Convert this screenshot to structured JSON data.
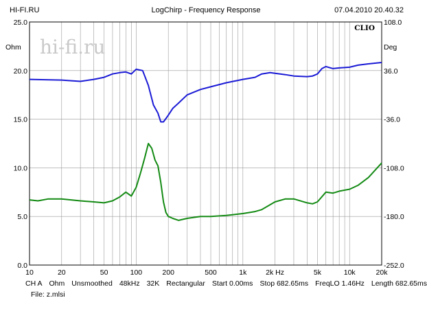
{
  "header": {
    "left": "HI-FI.RU",
    "center": "LogChirp - Frequency Response",
    "right": "07.04.2010 20.40.32"
  },
  "watermark": "hi-fi.ru",
  "brand": "CLIO",
  "footer": {
    "items": [
      "CH A",
      "Ohm",
      "Unsmoothed",
      "48kHz",
      "32K",
      "Rectangular",
      "Start 0.00ms",
      "Stop 682.65ms",
      "FreqLO 1.46Hz",
      "Length 682.65ms"
    ],
    "file": "File: z.mlsi"
  },
  "colors": {
    "impedance": "#1a1ad6",
    "phase": "#138a13",
    "grid": "#9a9a9a",
    "watermark": "#c9c9c9",
    "background": "#ffffff"
  },
  "chart_data": {
    "type": "line",
    "xscale": "log",
    "xlim": [
      10,
      20000
    ],
    "ylim_left": [
      0,
      25
    ],
    "ylim_right": [
      -252,
      108
    ],
    "left_unit": "Ohm",
    "right_unit": "Deg",
    "x_ticks": [
      {
        "v": 10,
        "label": "10"
      },
      {
        "v": 20,
        "label": "20"
      },
      {
        "v": 50,
        "label": "50"
      },
      {
        "v": 100,
        "label": "100"
      },
      {
        "v": 200,
        "label": "200"
      },
      {
        "v": 500,
        "label": "500"
      },
      {
        "v": 1000,
        "label": "1k"
      },
      {
        "v": 2000,
        "label": "2k Hz"
      },
      {
        "v": 5000,
        "label": "5k"
      },
      {
        "v": 10000,
        "label": "10k"
      },
      {
        "v": 20000,
        "label": "20k"
      }
    ],
    "y_left_ticks": [
      {
        "v": 0,
        "label": "0.0"
      },
      {
        "v": 5,
        "label": "5.0"
      },
      {
        "v": 10,
        "label": "10.0"
      },
      {
        "v": 15,
        "label": "15.0"
      },
      {
        "v": 20,
        "label": "20.0"
      },
      {
        "v": 25,
        "label": "25.0"
      }
    ],
    "y_right_ticks": [
      {
        "v": 108,
        "label": "108.0"
      },
      {
        "v": 36,
        "label": "36.0"
      },
      {
        "v": -36,
        "label": "-36.0"
      },
      {
        "v": -108,
        "label": "-108.0"
      },
      {
        "v": -180,
        "label": "-180.0"
      },
      {
        "v": -252,
        "label": "-252.0"
      }
    ],
    "series": [
      {
        "axis": "right",
        "color": "#1a1ad6",
        "x": [
          10,
          20,
          30,
          40,
          50,
          60,
          70,
          80,
          90,
          100,
          115,
          130,
          145,
          160,
          170,
          180,
          190,
          200,
          220,
          250,
          300,
          400,
          500,
          700,
          1000,
          1300,
          1500,
          1800,
          2000,
          2500,
          3000,
          4000,
          4500,
          5000,
          5500,
          6000,
          7000,
          8000,
          10000,
          12000,
          15000,
          20000
        ],
        "y": [
          23,
          22,
          20,
          23,
          26,
          31,
          33,
          34,
          31,
          38,
          36,
          14,
          -15,
          -27,
          -40,
          -40,
          -35,
          -30,
          -20,
          -12,
          0,
          8,
          12,
          18,
          23,
          26,
          31,
          33,
          32,
          30,
          28,
          27,
          28,
          31,
          39,
          42,
          39,
          40,
          41,
          44,
          46,
          48
        ]
      },
      {
        "axis": "left",
        "color": "#138a13",
        "x": [
          10,
          12,
          15,
          20,
          30,
          40,
          50,
          60,
          70,
          80,
          90,
          100,
          110,
          120,
          130,
          140,
          150,
          160,
          170,
          180,
          190,
          200,
          220,
          250,
          300,
          400,
          500,
          700,
          1000,
          1300,
          1500,
          2000,
          2500,
          3000,
          4000,
          4500,
          5000,
          6000,
          7000,
          8000,
          10000,
          12000,
          15000,
          20000
        ],
        "y": [
          6.7,
          6.6,
          6.8,
          6.8,
          6.6,
          6.5,
          6.4,
          6.6,
          7.0,
          7.5,
          7.1,
          8.0,
          9.5,
          11.0,
          12.5,
          12.0,
          10.8,
          10.2,
          8.5,
          6.5,
          5.4,
          5.0,
          4.8,
          4.6,
          4.8,
          5.0,
          5.0,
          5.1,
          5.3,
          5.5,
          5.7,
          6.5,
          6.8,
          6.8,
          6.4,
          6.3,
          6.5,
          7.5,
          7.4,
          7.6,
          7.8,
          8.2,
          9.0,
          10.5
        ]
      }
    ]
  }
}
